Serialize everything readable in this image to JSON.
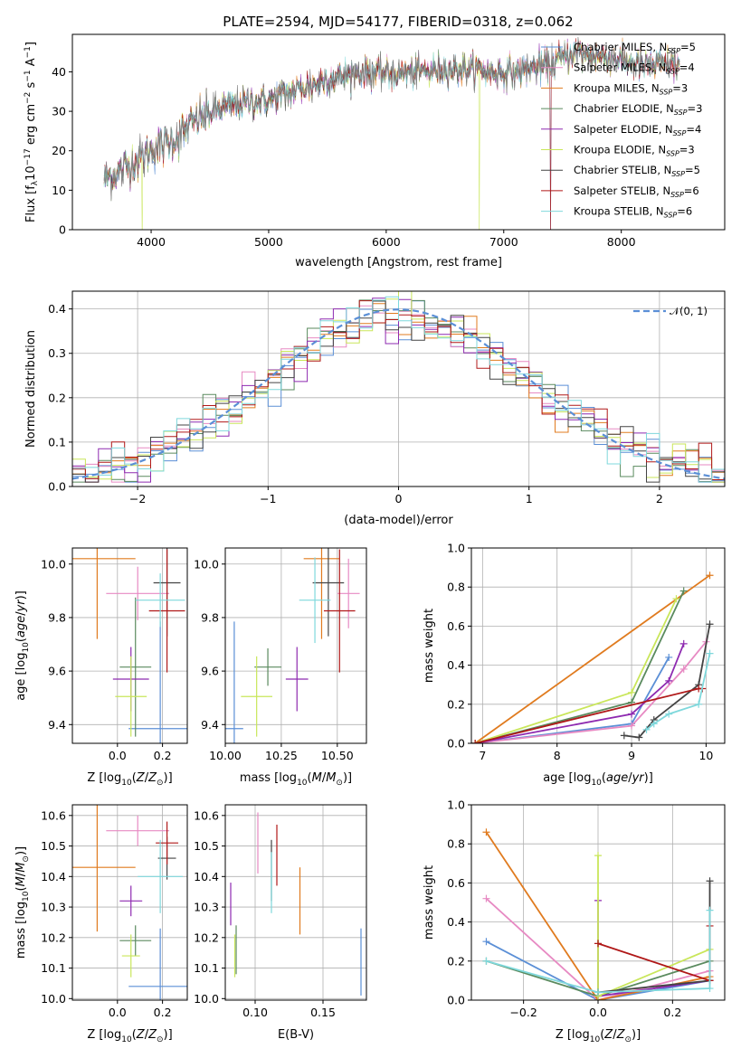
{
  "figure": {
    "title": "PLATE=2594, MJD=54177, FIBERID=0318, z=0.062"
  },
  "colors": {
    "Chabrier MILES": "#5b8fd6",
    "Salpeter MILES": "#e78ac3",
    "Kroupa MILES": "#e07b1f",
    "Chabrier ELODIE": "#5a8a5e",
    "Salpeter ELODIE": "#8e2ab0",
    "Kroupa ELODIE": "#c9e65a",
    "Chabrier STELIB": "#444444",
    "Salpeter STELIB": "#b01818",
    "Kroupa STELIB": "#7fd8dc"
  },
  "series_order": [
    "Chabrier MILES",
    "Salpeter MILES",
    "Kroupa MILES",
    "Chabrier ELODIE",
    "Salpeter ELODIE",
    "Kroupa ELODIE",
    "Chabrier STELIB",
    "Salpeter STELIB",
    "Kroupa STELIB"
  ],
  "chart_data": [
    {
      "id": "spectrum",
      "type": "line",
      "title": "PLATE=2594, MJD=54177, FIBERID=0318, z=0.062",
      "xlabel": "wavelength [Angstrom, rest frame]",
      "ylabel": "Flux [f_λ10^-17 erg cm^-2 s^-1 A^-1]",
      "xlim": [
        3330,
        8880
      ],
      "ylim": [
        0,
        49.5
      ],
      "xticks": [
        "4000",
        "5000",
        "6000",
        "7000",
        "8000"
      ],
      "yticks": [
        "0",
        "10",
        "20",
        "30",
        "40"
      ],
      "legend": [
        {
          "name": "Chabrier MILES",
          "nssp": "5"
        },
        {
          "name": "Salpeter MILES",
          "nssp": "4"
        },
        {
          "name": "Kroupa MILES",
          "nssp": "3"
        },
        {
          "name": "Chabrier ELODIE",
          "nssp": "3"
        },
        {
          "name": "Salpeter ELODIE",
          "nssp": "4"
        },
        {
          "name": "Kroupa ELODIE",
          "nssp": "3"
        },
        {
          "name": "Chabrier STELIB",
          "nssp": "5"
        },
        {
          "name": "Salpeter STELIB",
          "nssp": "6"
        },
        {
          "name": "Kroupa STELIB",
          "nssp": "6"
        }
      ],
      "continuum": [
        [
          3600,
          13
        ],
        [
          3700,
          14
        ],
        [
          3800,
          16
        ],
        [
          3950,
          19
        ],
        [
          4050,
          21
        ],
        [
          4200,
          23
        ],
        [
          4400,
          28
        ],
        [
          4600,
          31
        ],
        [
          4800,
          32
        ],
        [
          5000,
          33
        ],
        [
          5200,
          35
        ],
        [
          5500,
          38
        ],
        [
          5800,
          40
        ],
        [
          6000,
          39.5
        ],
        [
          6300,
          40
        ],
        [
          6600,
          41
        ],
        [
          6900,
          40
        ],
        [
          7100,
          40
        ],
        [
          7400,
          42
        ],
        [
          7600,
          45
        ],
        [
          7800,
          44
        ],
        [
          8000,
          43
        ],
        [
          8200,
          41.5
        ],
        [
          8500,
          42
        ]
      ]
    },
    {
      "id": "residuals",
      "type": "line",
      "xlabel": "(data-model)/error",
      "ylabel": "Normed distribution",
      "xlim": [
        -2.5,
        2.5
      ],
      "ylim": [
        0,
        0.44
      ],
      "xticks": [
        "−2",
        "−1",
        "0",
        "1",
        "2"
      ],
      "yticks": [
        "0.0",
        "0.1",
        "0.2",
        "0.3",
        "0.4"
      ],
      "reference_label": "𝒩(0, 1)",
      "reference_curve": "normal pdf, mean 0, sigma 1"
    },
    {
      "id": "age_vs_Z",
      "type": "scatter",
      "xlabel": "Z [log10(Z/Z⊙)]",
      "ylabel": "age [log10(age/yr)]",
      "xlim": [
        -0.2,
        0.31
      ],
      "ylim": [
        9.33,
        10.06
      ],
      "xticks": [
        "0.0",
        "0.2"
      ],
      "yticks": [
        "9.4",
        "9.6",
        "9.8",
        "10.0"
      ],
      "points": [
        {
          "series": "Chabrier MILES",
          "x": 0.19,
          "y": 9.385,
          "xerr": 0.14,
          "yerr": 0.4
        },
        {
          "series": "Salpeter MILES",
          "x": 0.09,
          "y": 9.89,
          "xerr": 0.14,
          "yerr": 0.1
        },
        {
          "series": "Kroupa MILES",
          "x": -0.09,
          "y": 10.02,
          "xerr": 0.17,
          "yerr": 0.3
        },
        {
          "series": "Chabrier ELODIE",
          "x": 0.08,
          "y": 9.615,
          "xerr": 0.07,
          "yerr": 0.26
        },
        {
          "series": "Salpeter ELODIE",
          "x": 0.06,
          "y": 9.57,
          "xerr": 0.08,
          "yerr": 0.12
        },
        {
          "series": "Kroupa ELODIE",
          "x": 0.06,
          "y": 9.505,
          "xerr": 0.07,
          "yerr": 0.15
        },
        {
          "series": "Chabrier STELIB",
          "x": 0.22,
          "y": 9.93,
          "xerr": 0.06,
          "yerr": 0.2
        },
        {
          "series": "Salpeter STELIB",
          "x": 0.22,
          "y": 9.825,
          "xerr": 0.08,
          "yerr": 0.23
        },
        {
          "series": "Kroupa STELIB",
          "x": 0.19,
          "y": 9.865,
          "xerr": 0.11,
          "yerr": 0.1
        }
      ]
    },
    {
      "id": "age_vs_mass",
      "type": "scatter",
      "xlabel": "mass [log10(M/M⊙)]",
      "ylabel": "",
      "xlim": [
        10.0,
        10.63
      ],
      "ylim": [
        9.33,
        10.06
      ],
      "xticks": [
        "10.00",
        "10.25",
        "10.50"
      ],
      "yticks": [
        "9.4",
        "9.6",
        "9.8",
        "10.0"
      ],
      "points": [
        {
          "series": "Chabrier MILES",
          "x": 10.04,
          "y": 9.385,
          "xerr": 0.04,
          "yerr": 0.4
        },
        {
          "series": "Salpeter MILES",
          "x": 10.55,
          "y": 9.89,
          "xerr": 0.05,
          "yerr": 0.13
        },
        {
          "series": "Kroupa MILES",
          "x": 10.43,
          "y": 10.02,
          "xerr": 0.08,
          "yerr": 0.3
        },
        {
          "series": "Chabrier ELODIE",
          "x": 10.19,
          "y": 9.615,
          "xerr": 0.06,
          "yerr": 0.07
        },
        {
          "series": "Salpeter ELODIE",
          "x": 10.32,
          "y": 9.57,
          "xerr": 0.05,
          "yerr": 0.12
        },
        {
          "series": "Kroupa ELODIE",
          "x": 10.14,
          "y": 9.505,
          "xerr": 0.07,
          "yerr": 0.15
        },
        {
          "series": "Chabrier STELIB",
          "x": 10.46,
          "y": 9.93,
          "xerr": 0.07,
          "yerr": 0.2
        },
        {
          "series": "Salpeter STELIB",
          "x": 10.51,
          "y": 9.825,
          "xerr": 0.07,
          "yerr": 0.23
        },
        {
          "series": "Kroupa STELIB",
          "x": 10.4,
          "y": 9.865,
          "xerr": 0.07,
          "yerr": 0.16
        }
      ]
    },
    {
      "id": "weight_vs_age",
      "type": "line",
      "xlabel": "age [log10(age/yr)]",
      "ylabel": "mass weight",
      "xlim": [
        6.85,
        10.25
      ],
      "ylim": [
        0,
        1.0
      ],
      "xticks": [
        "7",
        "8",
        "9",
        "10"
      ],
      "yticks": [
        "0.0",
        "0.2",
        "0.4",
        "0.6",
        "0.8",
        "1.0"
      ],
      "series": [
        {
          "name": "Chabrier MILES",
          "points": [
            [
              6.9,
              0.0
            ],
            [
              9.0,
              0.1
            ],
            [
              9.5,
              0.44
            ]
          ]
        },
        {
          "name": "Salpeter MILES",
          "points": [
            [
              6.9,
              0.0
            ],
            [
              9.0,
              0.09
            ],
            [
              9.7,
              0.38
            ],
            [
              10.0,
              0.52
            ]
          ]
        },
        {
          "name": "Kroupa MILES",
          "points": [
            [
              6.9,
              0.0
            ],
            [
              10.05,
              0.86
            ]
          ]
        },
        {
          "name": "Chabrier ELODIE",
          "points": [
            [
              6.9,
              0.0
            ],
            [
              9.0,
              0.21
            ],
            [
              9.7,
              0.78
            ]
          ]
        },
        {
          "name": "Salpeter ELODIE",
          "points": [
            [
              6.9,
              0.0
            ],
            [
              9.0,
              0.15
            ],
            [
              9.5,
              0.32
            ],
            [
              9.7,
              0.51
            ]
          ]
        },
        {
          "name": "Kroupa ELODIE",
          "points": [
            [
              6.9,
              0.0
            ],
            [
              9.0,
              0.26
            ],
            [
              9.6,
              0.74
            ]
          ]
        },
        {
          "name": "Chabrier STELIB",
          "points": [
            [
              8.9,
              0.04
            ],
            [
              9.1,
              0.03
            ],
            [
              9.3,
              0.12
            ],
            [
              9.9,
              0.3
            ],
            [
              10.05,
              0.61
            ]
          ]
        },
        {
          "name": "Salpeter STELIB",
          "points": [
            [
              6.9,
              0.0
            ],
            [
              9.9,
              0.28
            ],
            [
              9.95,
              0.28
            ]
          ]
        },
        {
          "name": "Kroupa STELIB",
          "points": [
            [
              9.2,
              0.07
            ],
            [
              9.3,
              0.1
            ],
            [
              9.5,
              0.15
            ],
            [
              9.9,
              0.2
            ],
            [
              10.05,
              0.46
            ]
          ]
        }
      ]
    },
    {
      "id": "mass_vs_Z",
      "type": "scatter",
      "xlabel": "Z [log10(Z/Z⊙)]",
      "ylabel": "mass [log10(M/M⊙)]",
      "xlim": [
        -0.2,
        0.31
      ],
      "ylim": [
        9.995,
        10.635
      ],
      "xticks": [
        "0.0",
        "0.2"
      ],
      "yticks": [
        "10.0",
        "10.1",
        "10.2",
        "10.3",
        "10.4",
        "10.5",
        "10.6"
      ],
      "points": [
        {
          "series": "Chabrier MILES",
          "x": 0.19,
          "y": 10.04,
          "xerr": 0.14,
          "yerr": 0.19
        },
        {
          "series": "Salpeter MILES",
          "x": 0.09,
          "y": 10.55,
          "xerr": 0.14,
          "yerr": 0.05
        },
        {
          "series": "Kroupa MILES",
          "x": -0.09,
          "y": 10.43,
          "xerr": 0.17,
          "yerr": 0.21
        },
        {
          "series": "Chabrier ELODIE",
          "x": 0.08,
          "y": 10.19,
          "xerr": 0.07,
          "yerr": 0.05
        },
        {
          "series": "Salpeter ELODIE",
          "x": 0.06,
          "y": 10.32,
          "xerr": 0.05,
          "yerr": 0.05
        },
        {
          "series": "Kroupa ELODIE",
          "x": 0.06,
          "y": 10.14,
          "xerr": 0.04,
          "yerr": 0.07
        },
        {
          "series": "Chabrier STELIB",
          "x": 0.22,
          "y": 10.46,
          "xerr": 0.04,
          "yerr": 0.07
        },
        {
          "series": "Salpeter STELIB",
          "x": 0.22,
          "y": 10.51,
          "xerr": 0.05,
          "yerr": 0.07
        },
        {
          "series": "Kroupa STELIB",
          "x": 0.19,
          "y": 10.4,
          "xerr": 0.1,
          "yerr": 0.12
        }
      ]
    },
    {
      "id": "mass_vs_ebv",
      "type": "scatter",
      "xlabel": "E(B-V)",
      "ylabel": "",
      "xlim": [
        0.078,
        0.182
      ],
      "ylim": [
        9.995,
        10.635
      ],
      "xticks": [
        "0.10",
        "0.15"
      ],
      "yticks": [
        "10.0",
        "10.1",
        "10.2",
        "10.3",
        "10.4",
        "10.5",
        "10.6"
      ],
      "points": [
        {
          "series": "Chabrier MILES",
          "x": 0.178,
          "y": 10.12,
          "yerr": 0.11
        },
        {
          "series": "Salpeter MILES",
          "x": 0.102,
          "y": 10.51,
          "yerr": 0.1
        },
        {
          "series": "Kroupa MILES",
          "x": 0.133,
          "y": 10.32,
          "yerr": 0.11
        },
        {
          "series": "Chabrier ELODIE",
          "x": 0.086,
          "y": 10.16,
          "yerr": 0.08
        },
        {
          "series": "Salpeter ELODIE",
          "x": 0.082,
          "y": 10.31,
          "yerr": 0.07
        },
        {
          "series": "Kroupa ELODIE",
          "x": 0.085,
          "y": 10.14,
          "yerr": 0.07
        },
        {
          "series": "Chabrier STELIB",
          "x": 0.112,
          "y": 10.42,
          "yerr": 0.1
        },
        {
          "series": "Salpeter STELIB",
          "x": 0.116,
          "y": 10.47,
          "yerr": 0.1
        },
        {
          "series": "Kroupa STELIB",
          "x": 0.112,
          "y": 10.38,
          "yerr": 0.1
        }
      ]
    },
    {
      "id": "weight_vs_Z",
      "type": "line",
      "xlabel": "Z [log10(Z/Z⊙)]",
      "ylabel": "mass weight",
      "xlim": [
        -0.34,
        0.34
      ],
      "ylim": [
        0,
        1.0
      ],
      "xticks": [
        "−0.2",
        "0.0",
        "0.2"
      ],
      "yticks": [
        "0.0",
        "0.2",
        "0.4",
        "0.6",
        "0.8",
        "1.0"
      ],
      "series": [
        {
          "name": "Chabrier MILES",
          "points": [
            [
              -0.3,
              0.3
            ],
            [
              0.0,
              0.0
            ],
            [
              0.3,
              0.1
            ]
          ]
        },
        {
          "name": "Salpeter MILES",
          "points": [
            [
              -0.3,
              0.52
            ],
            [
              0.0,
              0.0
            ],
            [
              0.3,
              0.15
            ]
          ]
        },
        {
          "name": "Kroupa MILES",
          "points": [
            [
              -0.3,
              0.86
            ],
            [
              0.0,
              0.0
            ],
            [
              0.3,
              0.12
            ]
          ]
        },
        {
          "name": "Chabrier ELODIE",
          "points": [
            [
              -0.3,
              0.2
            ],
            [
              0.0,
              0.02
            ],
            [
              0.3,
              0.2
            ]
          ]
        },
        {
          "name": "Salpeter ELODIE",
          "points": [
            [
              0.0,
              0.51
            ],
            [
              0.0,
              0.02
            ],
            [
              0.3,
              0.1
            ]
          ]
        },
        {
          "name": "Kroupa ELODIE",
          "points": [
            [
              0.0,
              0.74
            ],
            [
              0.0,
              0.02
            ],
            [
              0.3,
              0.26
            ]
          ]
        },
        {
          "name": "Chabrier STELIB",
          "points": [
            [
              0.0,
              0.04
            ],
            [
              0.3,
              0.1
            ],
            [
              0.3,
              0.61
            ]
          ]
        },
        {
          "name": "Salpeter STELIB",
          "points": [
            [
              0.0,
              0.29
            ],
            [
              0.3,
              0.1
            ],
            [
              0.3,
              0.38
            ]
          ]
        },
        {
          "name": "Kroupa STELIB",
          "points": [
            [
              -0.3,
              0.2
            ],
            [
              0.0,
              0.04
            ],
            [
              0.3,
              0.06
            ],
            [
              0.3,
              0.46
            ]
          ]
        }
      ]
    }
  ]
}
